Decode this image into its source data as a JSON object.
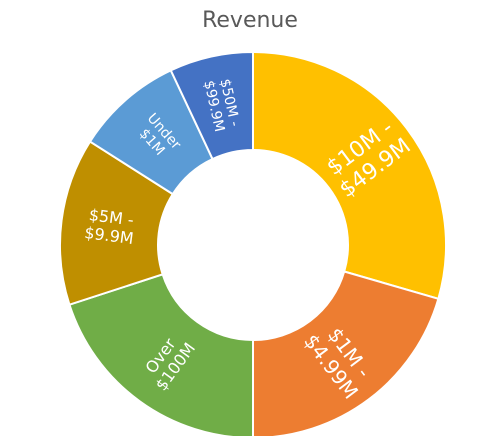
{
  "chart_data": {
    "type": "pie",
    "title": "Revenue",
    "categories": [
      "$10M - $49.9M",
      "$1M - $4.99M",
      "Over $100M",
      "$5M - $9.9M",
      "Under $1M",
      "$50M - $99.9M"
    ],
    "label_lines": [
      [
        "$10M -",
        "$49.9M"
      ],
      [
        "$1M -",
        "$4.99M"
      ],
      [
        "Over",
        "$100M"
      ],
      [
        "$5M -",
        "$9.9M"
      ],
      [
        "Under",
        "$1M"
      ],
      [
        "$50M -",
        "$99.9M"
      ]
    ],
    "values": [
      29.5,
      20.5,
      20.0,
      14.0,
      9.0,
      7.0
    ],
    "colors": [
      "#FFC000",
      "#ED7D31",
      "#70AD47",
      "#BF8F00",
      "#5B9BD5",
      "#4472C4"
    ],
    "donut": true,
    "legend": "none"
  }
}
